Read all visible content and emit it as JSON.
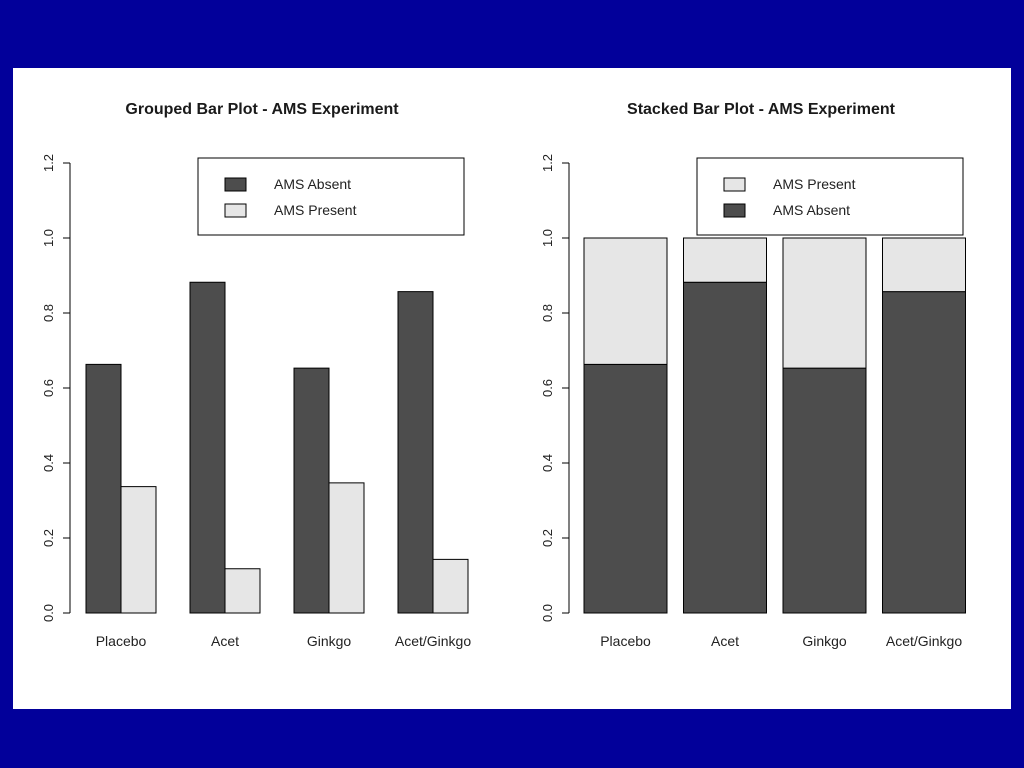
{
  "colors": {
    "slide_background": "#02009a",
    "panel_background": "#ffffff",
    "absent": "#4d4d4d",
    "present": "#e6e6e6",
    "stroke": "#000000"
  },
  "chart_data": [
    {
      "type": "bar",
      "mode": "grouped",
      "title": "Grouped Bar Plot - AMS Experiment",
      "categories": [
        "Placebo",
        "Acet",
        "Ginkgo",
        "Acet/Ginkgo"
      ],
      "series": [
        {
          "name": "AMS Absent",
          "color": "#4d4d4d",
          "values": [
            0.663,
            0.882,
            0.653,
            0.857
          ]
        },
        {
          "name": "AMS Present",
          "color": "#e6e6e6",
          "values": [
            0.337,
            0.118,
            0.347,
            0.143
          ]
        }
      ],
      "legend": [
        {
          "label": "AMS Absent",
          "color": "#4d4d4d"
        },
        {
          "label": "AMS Present",
          "color": "#e6e6e6"
        }
      ],
      "legend_position": "top-right",
      "yticks": [
        "0.0",
        "0.2",
        "0.4",
        "0.6",
        "0.8",
        "1.0",
        "1.2"
      ],
      "ylim": [
        0,
        1.2
      ],
      "xlabel": "",
      "ylabel": ""
    },
    {
      "type": "bar",
      "mode": "stacked",
      "title": "Stacked Bar Plot - AMS Experiment",
      "categories": [
        "Placebo",
        "Acet",
        "Ginkgo",
        "Acet/Ginkgo"
      ],
      "series": [
        {
          "name": "AMS Absent",
          "color": "#4d4d4d",
          "values": [
            0.663,
            0.882,
            0.653,
            0.857
          ]
        },
        {
          "name": "AMS Present",
          "color": "#e6e6e6",
          "values": [
            0.337,
            0.118,
            0.347,
            0.143
          ]
        }
      ],
      "legend": [
        {
          "label": "AMS Present",
          "color": "#e6e6e6"
        },
        {
          "label": "AMS Absent",
          "color": "#4d4d4d"
        }
      ],
      "legend_position": "top-right",
      "yticks": [
        "0.0",
        "0.2",
        "0.4",
        "0.6",
        "0.8",
        "1.0",
        "1.2"
      ],
      "ylim": [
        0,
        1.2
      ],
      "xlabel": "",
      "ylabel": ""
    }
  ]
}
